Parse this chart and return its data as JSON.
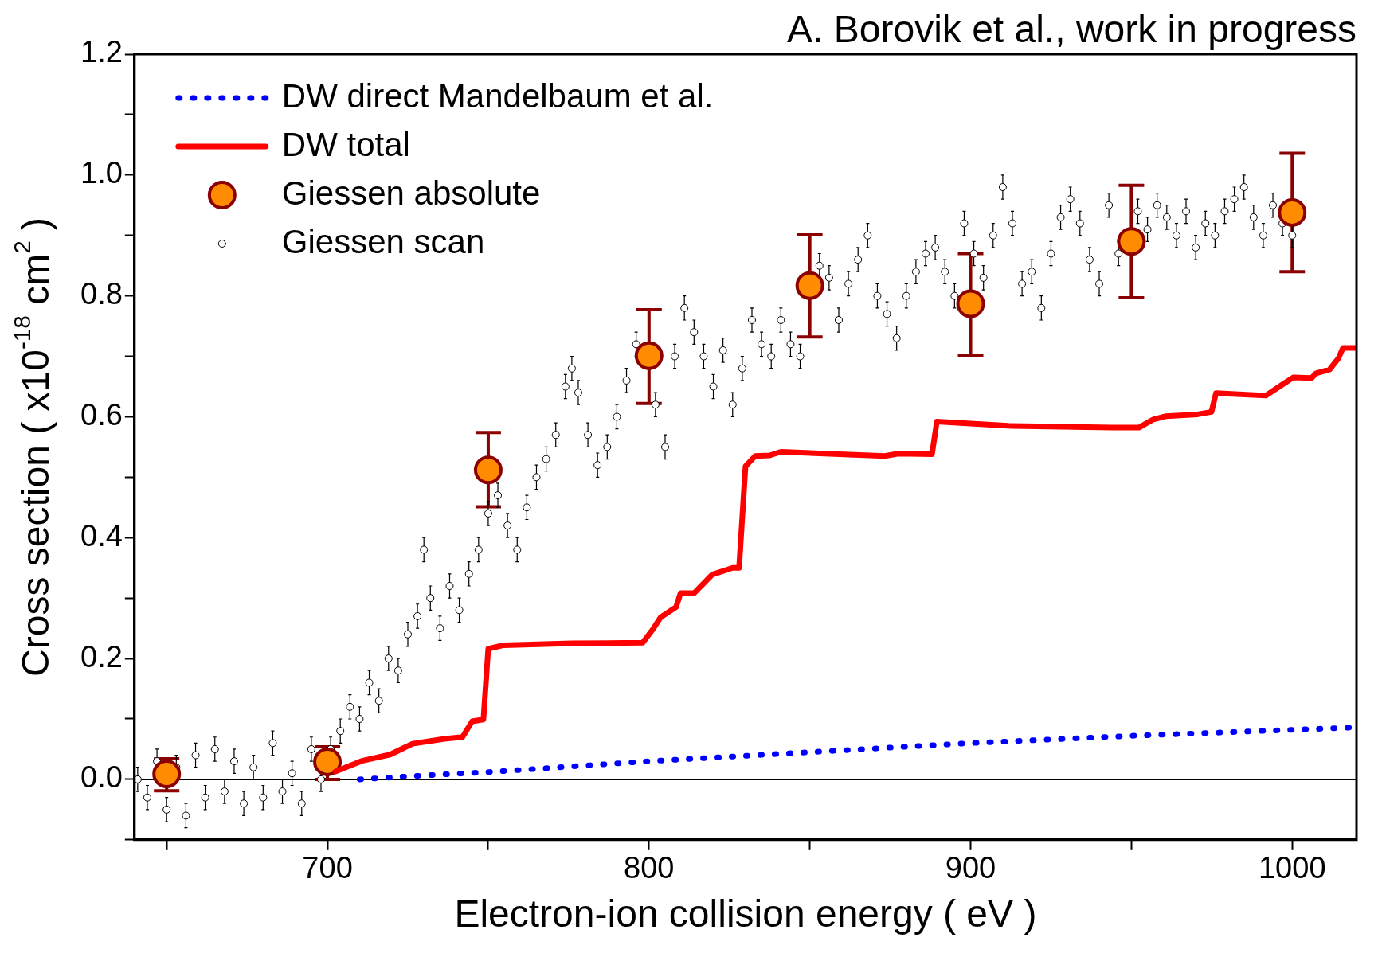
{
  "chart_data": {
    "type": "line",
    "xlabel": "Electron-ion collision energy ( eV )",
    "ylabel": "Cross section ( x10$^{-18}$ cm$^{2}$ )",
    "annotations": [
      "A. Borovik et al., work in progress"
    ],
    "xlim": [
      640,
      1020
    ],
    "ylim": [
      -0.1,
      1.2
    ],
    "xticks": [
      {
        "value": 650,
        "label": null
      },
      {
        "value": 700,
        "label": "700"
      },
      {
        "value": 750,
        "label": null
      },
      {
        "value": 800,
        "label": "800"
      },
      {
        "value": 850,
        "label": null
      },
      {
        "value": 900,
        "label": "900"
      },
      {
        "value": 950,
        "label": null
      },
      {
        "value": 1000,
        "label": "1000"
      }
    ],
    "yticks": [
      {
        "value": -0.1,
        "label": null
      },
      {
        "value": 0,
        "label": "0.0"
      },
      {
        "value": 0.1,
        "label": null
      },
      {
        "value": 0.2,
        "label": "0.2"
      },
      {
        "value": 0.3,
        "label": null
      },
      {
        "value": 0.4,
        "label": "0.4"
      },
      {
        "value": 0.5,
        "label": null
      },
      {
        "value": 0.6,
        "label": "0.6"
      },
      {
        "value": 0.7,
        "label": null
      },
      {
        "value": 0.8,
        "label": "0.8"
      },
      {
        "value": 0.9,
        "label": null
      },
      {
        "value": 1.0,
        "label": "1.0"
      },
      {
        "value": 1.1,
        "label": null
      },
      {
        "value": 1.2,
        "label": "1.2"
      }
    ],
    "ref_lines": [
      {
        "axis": "y",
        "value": 0,
        "color": "#000000"
      }
    ],
    "legend": "top left",
    "series": [
      {
        "name": "DW direct Mandelbaum et al.",
        "color": "#0000ff",
        "line_style": "dotted",
        "marker": "none",
        "x": [
          710,
          725,
          750,
          800,
          850,
          900,
          950,
          1000,
          1020
        ],
        "values": [
          0,
          0.005,
          0.012,
          0.03,
          0.045,
          0.06,
          0.072,
          0.082,
          0.086
        ]
      },
      {
        "name": "DW total",
        "color": "#ff0000",
        "line_style": "solid",
        "marker": "none",
        "x": [
          702.5,
          711,
          719.5,
          726.5,
          736.4,
          742,
          745,
          748.5,
          750,
          754.8,
          776,
          798,
          801.3,
          803.6,
          808.4,
          809.8,
          814,
          819.7,
          826,
          828,
          830,
          833,
          837.5,
          841,
          873.3,
          877.5,
          888,
          889.5,
          911.6,
          944,
          952.3,
          956.6,
          960.8,
          970.6,
          974.9,
          976.3,
          991.8,
          996,
          1000.3,
          1006,
          1007.4,
          1011.6,
          1014.4,
          1015.8,
          1020
        ],
        "values": [
          0.013,
          0.031,
          0.041,
          0.059,
          0.067,
          0.07,
          0.096,
          0.099,
          0.216,
          0.222,
          0.225,
          0.226,
          0.249,
          0.268,
          0.285,
          0.308,
          0.308,
          0.339,
          0.35,
          0.35,
          0.518,
          0.535,
          0.536,
          0.542,
          0.535,
          0.539,
          0.538,
          0.592,
          0.585,
          0.582,
          0.582,
          0.595,
          0.601,
          0.604,
          0.608,
          0.639,
          0.635,
          0.65,
          0.665,
          0.664,
          0.672,
          0.678,
          0.697,
          0.714,
          0.714
        ]
      },
      {
        "name": "Giessen absolute",
        "type": "scatter",
        "color": "#ff8c00",
        "marker": "circle",
        "x": [
          650,
          700,
          750,
          800,
          850,
          900,
          950,
          1000
        ],
        "values": [
          0.009,
          0.029,
          0.512,
          0.701,
          0.817,
          0.787,
          0.89,
          0.938
        ],
        "errors": [
          [
            -0.019,
            0.034
          ],
          [
            0.0,
            0.054
          ],
          [
            0.451,
            0.574
          ],
          [
            0.622,
            0.777
          ],
          [
            0.732,
            0.901
          ],
          [
            0.702,
            0.87
          ],
          [
            0.797,
            0.983
          ],
          [
            0.84,
            1.036
          ]
        ]
      },
      {
        "name": "Giessen scan",
        "type": "scatter",
        "color": "#ffffff",
        "marker": "circle",
        "x": [
          641,
          644,
          647,
          650,
          653,
          656,
          659,
          662,
          665,
          668,
          671,
          674,
          677,
          680,
          683,
          686,
          689,
          692,
          695,
          698,
          701,
          704,
          707,
          710,
          713,
          716,
          719,
          722,
          725,
          728,
          730,
          732,
          735,
          738,
          741,
          744,
          747,
          750,
          753,
          756,
          759,
          762,
          765,
          768,
          771,
          774,
          776,
          778,
          781,
          784,
          787,
          790,
          793,
          796,
          799,
          802,
          805,
          808,
          811,
          814,
          817,
          820,
          823,
          826,
          829,
          832,
          835,
          838,
          841,
          844,
          847,
          850,
          853,
          856,
          859,
          862,
          865,
          868,
          871,
          874,
          877,
          880,
          883,
          886,
          889,
          892,
          895,
          898,
          901,
          904,
          907,
          910,
          913,
          916,
          919,
          922,
          925,
          928,
          931,
          934,
          937,
          940,
          943,
          946,
          949,
          952,
          955,
          958,
          961,
          964,
          967,
          970,
          973,
          976,
          979,
          982,
          985,
          988,
          991,
          994,
          997,
          1000
        ],
        "values": [
          0.0,
          -0.03,
          0.03,
          -0.05,
          0.02,
          -0.06,
          0.04,
          -0.03,
          0.05,
          -0.02,
          0.03,
          -0.04,
          0.02,
          -0.03,
          0.06,
          -0.02,
          0.01,
          -0.04,
          0.05,
          0.0,
          0.05,
          0.08,
          0.12,
          0.1,
          0.16,
          0.13,
          0.2,
          0.18,
          0.24,
          0.27,
          0.38,
          0.3,
          0.25,
          0.32,
          0.28,
          0.34,
          0.38,
          0.44,
          0.47,
          0.42,
          0.38,
          0.45,
          0.5,
          0.53,
          0.57,
          0.65,
          0.68,
          0.64,
          0.57,
          0.52,
          0.55,
          0.6,
          0.66,
          0.72,
          null,
          0.62,
          0.55,
          0.7,
          0.78,
          0.74,
          0.7,
          0.65,
          0.71,
          0.62,
          0.68,
          0.76,
          0.72,
          0.7,
          0.76,
          0.72,
          0.7,
          null,
          0.85,
          0.83,
          0.76,
          0.82,
          0.86,
          0.9,
          0.8,
          0.77,
          0.73,
          0.8,
          0.84,
          0.87,
          0.88,
          0.84,
          0.8,
          0.92,
          0.87,
          0.83,
          0.9,
          0.98,
          0.92,
          0.82,
          0.84,
          0.78,
          0.87,
          0.93,
          0.96,
          0.92,
          0.86,
          0.82,
          0.95,
          0.87,
          null,
          0.94,
          0.91,
          0.95,
          0.93,
          0.9,
          0.94,
          0.88,
          0.92,
          0.9,
          0.94,
          0.96,
          0.98,
          0.93,
          0.9,
          0.95,
          0.92,
          0.9
        ],
        "errors": [
          0.02,
          0.02,
          0.02,
          0.02,
          0.02,
          0.02,
          0.02,
          0.02,
          0.02,
          0.02,
          0.02,
          0.02,
          0.02,
          0.02,
          0.02,
          0.02,
          0.02,
          0.02,
          0.02,
          0.02,
          0.02,
          0.02,
          0.02,
          0.02,
          0.02,
          0.02,
          0.02,
          0.02,
          0.02,
          0.02,
          0.02,
          0.02,
          0.02,
          0.02,
          0.02,
          0.02,
          0.02,
          0.02,
          0.02,
          0.02,
          0.02,
          0.02,
          0.02,
          0.02,
          0.02,
          0.02,
          0.02,
          0.02,
          0.02,
          0.02,
          0.02,
          0.02,
          0.02,
          0.02,
          null,
          0.02,
          0.02,
          0.02,
          0.02,
          0.02,
          0.02,
          0.02,
          0.02,
          0.02,
          0.02,
          0.02,
          0.02,
          0.02,
          0.02,
          0.02,
          0.02,
          null,
          0.02,
          0.02,
          0.02,
          0.02,
          0.02,
          0.02,
          0.02,
          0.02,
          0.02,
          0.02,
          0.02,
          0.02,
          0.02,
          0.02,
          0.02,
          0.02,
          0.02,
          0.02,
          0.02,
          0.02,
          0.02,
          0.02,
          0.02,
          0.02,
          0.02,
          0.02,
          0.02,
          0.02,
          0.02,
          0.02,
          0.02,
          0.02,
          null,
          0.02,
          0.02,
          0.02,
          0.02,
          0.02,
          0.02,
          0.02,
          0.02,
          0.02,
          0.02,
          0.02,
          0.02,
          0.02,
          0.02,
          0.02,
          0.02,
          0.02
        ]
      }
    ]
  }
}
